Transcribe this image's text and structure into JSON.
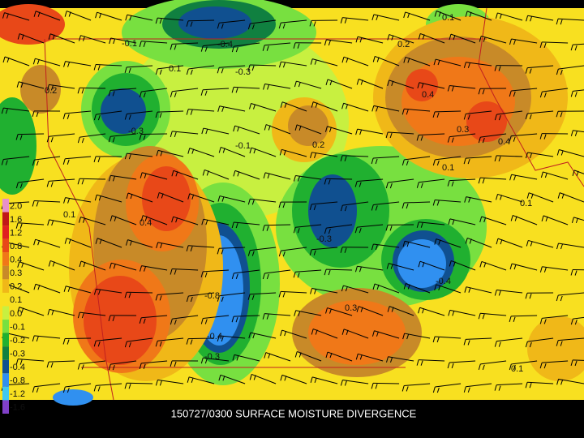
{
  "caption": "150727/0300 SURFACE MOISTURE DIVERGENCE",
  "legend": [
    {
      "label": "2.0",
      "color": "#e890c8"
    },
    {
      "label": "1.6",
      "color": "#c01818"
    },
    {
      "label": "1.2",
      "color": "#e02020"
    },
    {
      "label": "0.8",
      "color": "#e84818"
    },
    {
      "label": "0.4",
      "color": "#f07818"
    },
    {
      "label": "0.3",
      "color": "#c88a28"
    },
    {
      "label": "0.2",
      "color": "#f0b818"
    },
    {
      "label": "0.1",
      "color": "#f8e020"
    },
    {
      "label": "0.0",
      "color": "#c8f040"
    },
    {
      "label": "-0.1",
      "color": "#78e040"
    },
    {
      "label": "-0.2",
      "color": "#20b030"
    },
    {
      "label": "-0.3",
      "color": "#108040"
    },
    {
      "label": "-0.4",
      "color": "#105090"
    },
    {
      "label": "-0.8",
      "color": "#3090f0"
    },
    {
      "label": "-1.2",
      "color": "#40c8f0"
    },
    {
      "label": "-1.6",
      "color": "#8040c8"
    }
  ],
  "contour_labels": [
    "-0.1",
    "0.1",
    "-0.4",
    "-0.3",
    "0.2",
    "-0.3",
    "-0.1",
    "0.2",
    "0.4",
    "0.3",
    "0.4",
    "0.1",
    "0.1",
    "-0.3",
    "0.4",
    "-0.8",
    "-0.4",
    "-0.3",
    "0.3",
    "-0.4",
    "0.1",
    "0.1",
    "0.2",
    "0.1"
  ]
}
